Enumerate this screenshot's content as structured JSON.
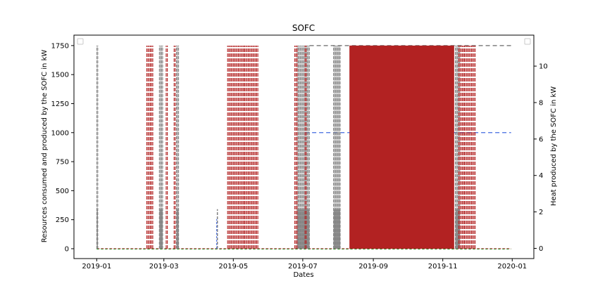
{
  "chart_data": {
    "type": "line",
    "title": "SOFC",
    "xlabel": "Dates",
    "ylabel": "Resources consumed and produced by the SOFC in kW",
    "ylabel_right": "Heat produced by the SOFC in kW",
    "x_range": [
      "2018-12-12",
      "2020-01-20"
    ],
    "ylim": [
      -85,
      1840
    ],
    "ylim_right": [
      -0.56,
      11.7
    ],
    "x_ticks": [
      "2019-01",
      "2019-03",
      "2019-05",
      "2019-07",
      "2019-09",
      "2019-11",
      "2020-01"
    ],
    "x_tick_dates": [
      "2019-01-01",
      "2019-03-01",
      "2019-05-01",
      "2019-07-01",
      "2019-09-01",
      "2019-11-01",
      "2020-01-01"
    ],
    "y_ticks": [
      0,
      250,
      500,
      750,
      1000,
      1250,
      1500,
      1750
    ],
    "y_ticks_right": [
      0,
      2,
      4,
      6,
      8,
      10
    ],
    "legend_left": "top-left (empty)",
    "legend_right": "top-right (empty)",
    "grid": false,
    "colors": {
      "red": "#b22222",
      "gray": "#808080",
      "blue": "#4169e1",
      "green": "#228b22",
      "orange": "#ff8c00",
      "purple": "#8b6fb0"
    },
    "red_dense_block": {
      "start": "2019-08-11",
      "end": "2019-11-11",
      "value": 1750
    },
    "red_spikes": [
      {
        "start": "2019-02-14",
        "end": "2019-02-20",
        "value": 1750
      },
      {
        "start": "2019-03-03",
        "end": "2019-03-05",
        "value": 1750
      },
      {
        "start": "2019-03-10",
        "end": "2019-03-12",
        "value": 1750
      },
      {
        "start": "2019-04-26",
        "end": "2019-05-11",
        "value": 1750
      },
      {
        "start": "2019-05-11",
        "end": "2019-05-23",
        "value": 1750
      },
      {
        "start": "2019-06-24",
        "end": "2019-06-27",
        "value": 1750
      },
      {
        "start": "2019-07-03",
        "end": "2019-07-05",
        "value": 1750
      },
      {
        "start": "2019-11-15",
        "end": "2019-11-20",
        "value": 1750
      },
      {
        "start": "2019-11-20",
        "end": "2019-11-30",
        "value": 1750
      }
    ],
    "gray_blocks": [
      {
        "start": "2019-01-01",
        "end": "2019-01-02",
        "value": 1750
      },
      {
        "start": "2019-02-25",
        "end": "2019-02-28",
        "value": 1750
      },
      {
        "start": "2019-03-12",
        "end": "2019-03-14",
        "value": 1750
      },
      {
        "start": "2019-06-26",
        "end": "2019-07-07",
        "value": 1750
      },
      {
        "start": "2019-07-28",
        "end": "2019-08-03",
        "value": 1750
      },
      {
        "start": "2019-11-12",
        "end": "2019-11-16",
        "value": 1750
      }
    ],
    "gray_dashed_level": {
      "start": "2019-07-07",
      "end": "2019-12-31",
      "value": 1750
    },
    "blue_dashed_level": {
      "start": "2019-07-03",
      "end": "2019-12-31",
      "value": 1000
    },
    "gray_small_spike": {
      "date": "2019-04-17",
      "value": 340
    },
    "red_baseline": {
      "start": "2019-01-01",
      "end": "2019-12-31",
      "value": 0
    },
    "green_baseline": {
      "start": "2019-01-01",
      "end": "2019-12-31",
      "value": 0
    }
  }
}
